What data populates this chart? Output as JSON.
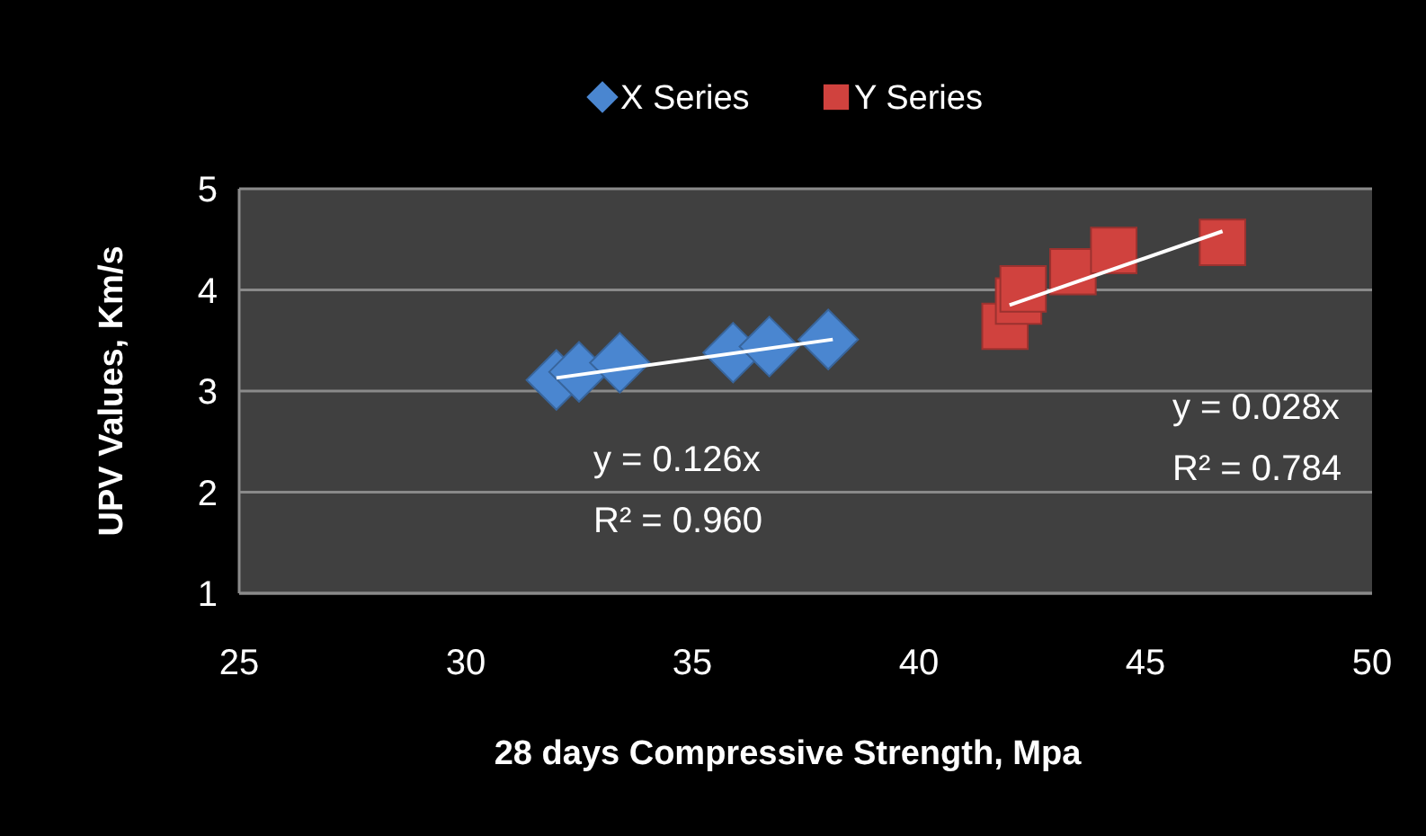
{
  "chart_data": {
    "type": "scatter",
    "xlabel": "28 days Compressive Strength, Mpa",
    "ylabel": "UPV Values, Km/s",
    "xlim": [
      25,
      50
    ],
    "xticks": [
      25,
      30,
      35,
      40,
      45,
      50
    ],
    "ylim": [
      1,
      5
    ],
    "yticks": [
      1,
      2,
      3,
      4,
      5
    ],
    "grid": "y",
    "legend": "top",
    "series": [
      {
        "name": "X Series",
        "color": "#4a86d0",
        "marker": "diamond",
        "x": [
          32.0,
          32.5,
          33.4,
          35.9,
          36.7,
          38.0
        ],
        "values": [
          3.11,
          3.19,
          3.28,
          3.38,
          3.44,
          3.51
        ]
      },
      {
        "name": "Y Series",
        "color": "#d0423e",
        "marker": "square",
        "x": [
          41.9,
          42.2,
          42.3,
          43.4,
          44.3,
          46.7
        ],
        "values": [
          3.64,
          3.89,
          4.01,
          4.18,
          4.39,
          4.47
        ]
      },
      {
        "type": "line",
        "color": "#ffffff",
        "marker": "none",
        "x": [
          32.0,
          38.1
        ],
        "values": [
          3.13,
          3.51
        ]
      },
      {
        "type": "line",
        "color": "#ffffff",
        "marker": "none",
        "x": [
          42.0,
          46.7
        ],
        "values": [
          3.85,
          4.58
        ]
      }
    ],
    "annotations": [
      "y = 0.126x",
      "R² = 0.960",
      "y = 0.028x",
      "R² = 0.784"
    ]
  }
}
